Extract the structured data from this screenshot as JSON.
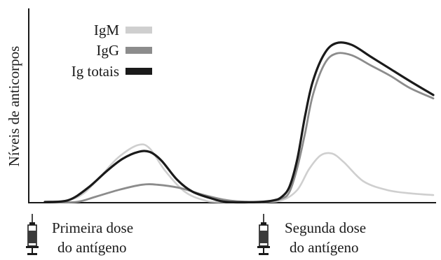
{
  "chart_data": {
    "type": "line",
    "title": "",
    "xlabel": "",
    "ylabel": "Níveis de anticorpos",
    "x_range": [
      0,
      100
    ],
    "y_range": [
      0,
      100
    ],
    "axis_ticks": false,
    "grid": false,
    "legend_position": "top-left",
    "series": [
      {
        "name": "IgM",
        "color": "#cfcfcf",
        "points": [
          [
            0,
            0
          ],
          [
            6,
            1
          ],
          [
            10,
            5
          ],
          [
            14,
            14
          ],
          [
            19,
            26
          ],
          [
            24,
            33
          ],
          [
            27,
            31
          ],
          [
            31,
            18
          ],
          [
            36,
            6
          ],
          [
            41,
            1
          ],
          [
            45,
            0
          ],
          [
            55,
            0
          ],
          [
            61,
            1
          ],
          [
            65,
            7
          ],
          [
            68,
            19
          ],
          [
            71,
            27
          ],
          [
            74,
            28
          ],
          [
            77,
            23
          ],
          [
            82,
            12
          ],
          [
            88,
            7
          ],
          [
            94,
            5
          ],
          [
            100,
            4
          ]
        ]
      },
      {
        "name": "IgG",
        "color": "#8c8c8c",
        "points": [
          [
            0,
            0
          ],
          [
            8,
            0
          ],
          [
            13,
            3
          ],
          [
            19,
            7
          ],
          [
            25,
            10
          ],
          [
            29,
            10
          ],
          [
            35,
            8
          ],
          [
            41,
            4
          ],
          [
            47,
            1
          ],
          [
            53,
            0
          ],
          [
            57,
            0
          ],
          [
            61,
            2
          ],
          [
            63,
            6
          ],
          [
            65,
            20
          ],
          [
            67,
            40
          ],
          [
            69,
            62
          ],
          [
            72,
            80
          ],
          [
            75,
            86
          ],
          [
            79,
            85
          ],
          [
            84,
            79
          ],
          [
            89,
            73
          ],
          [
            94,
            66
          ],
          [
            100,
            60
          ]
        ]
      },
      {
        "name": "Ig totais",
        "color": "#1a1a1a",
        "points": [
          [
            0,
            0
          ],
          [
            6,
            1
          ],
          [
            11,
            8
          ],
          [
            16,
            18
          ],
          [
            20,
            25
          ],
          [
            24,
            29
          ],
          [
            27,
            29
          ],
          [
            30,
            24
          ],
          [
            34,
            13
          ],
          [
            38,
            6
          ],
          [
            43,
            2
          ],
          [
            47,
            0
          ],
          [
            55,
            0
          ],
          [
            59,
            1
          ],
          [
            61,
            3
          ],
          [
            63,
            9
          ],
          [
            65,
            25
          ],
          [
            67,
            50
          ],
          [
            69,
            70
          ],
          [
            72,
            86
          ],
          [
            75,
            92
          ],
          [
            79,
            91
          ],
          [
            84,
            84
          ],
          [
            89,
            77
          ],
          [
            94,
            70
          ],
          [
            100,
            62
          ]
        ]
      }
    ],
    "annotations": [
      {
        "x": 0,
        "lines": [
          "Primeira dose",
          "do antígeno"
        ],
        "icon": "syringe-icon"
      },
      {
        "x": 55,
        "lines": [
          "Segunda dose",
          "do antígeno"
        ],
        "icon": "syringe-icon"
      }
    ]
  }
}
